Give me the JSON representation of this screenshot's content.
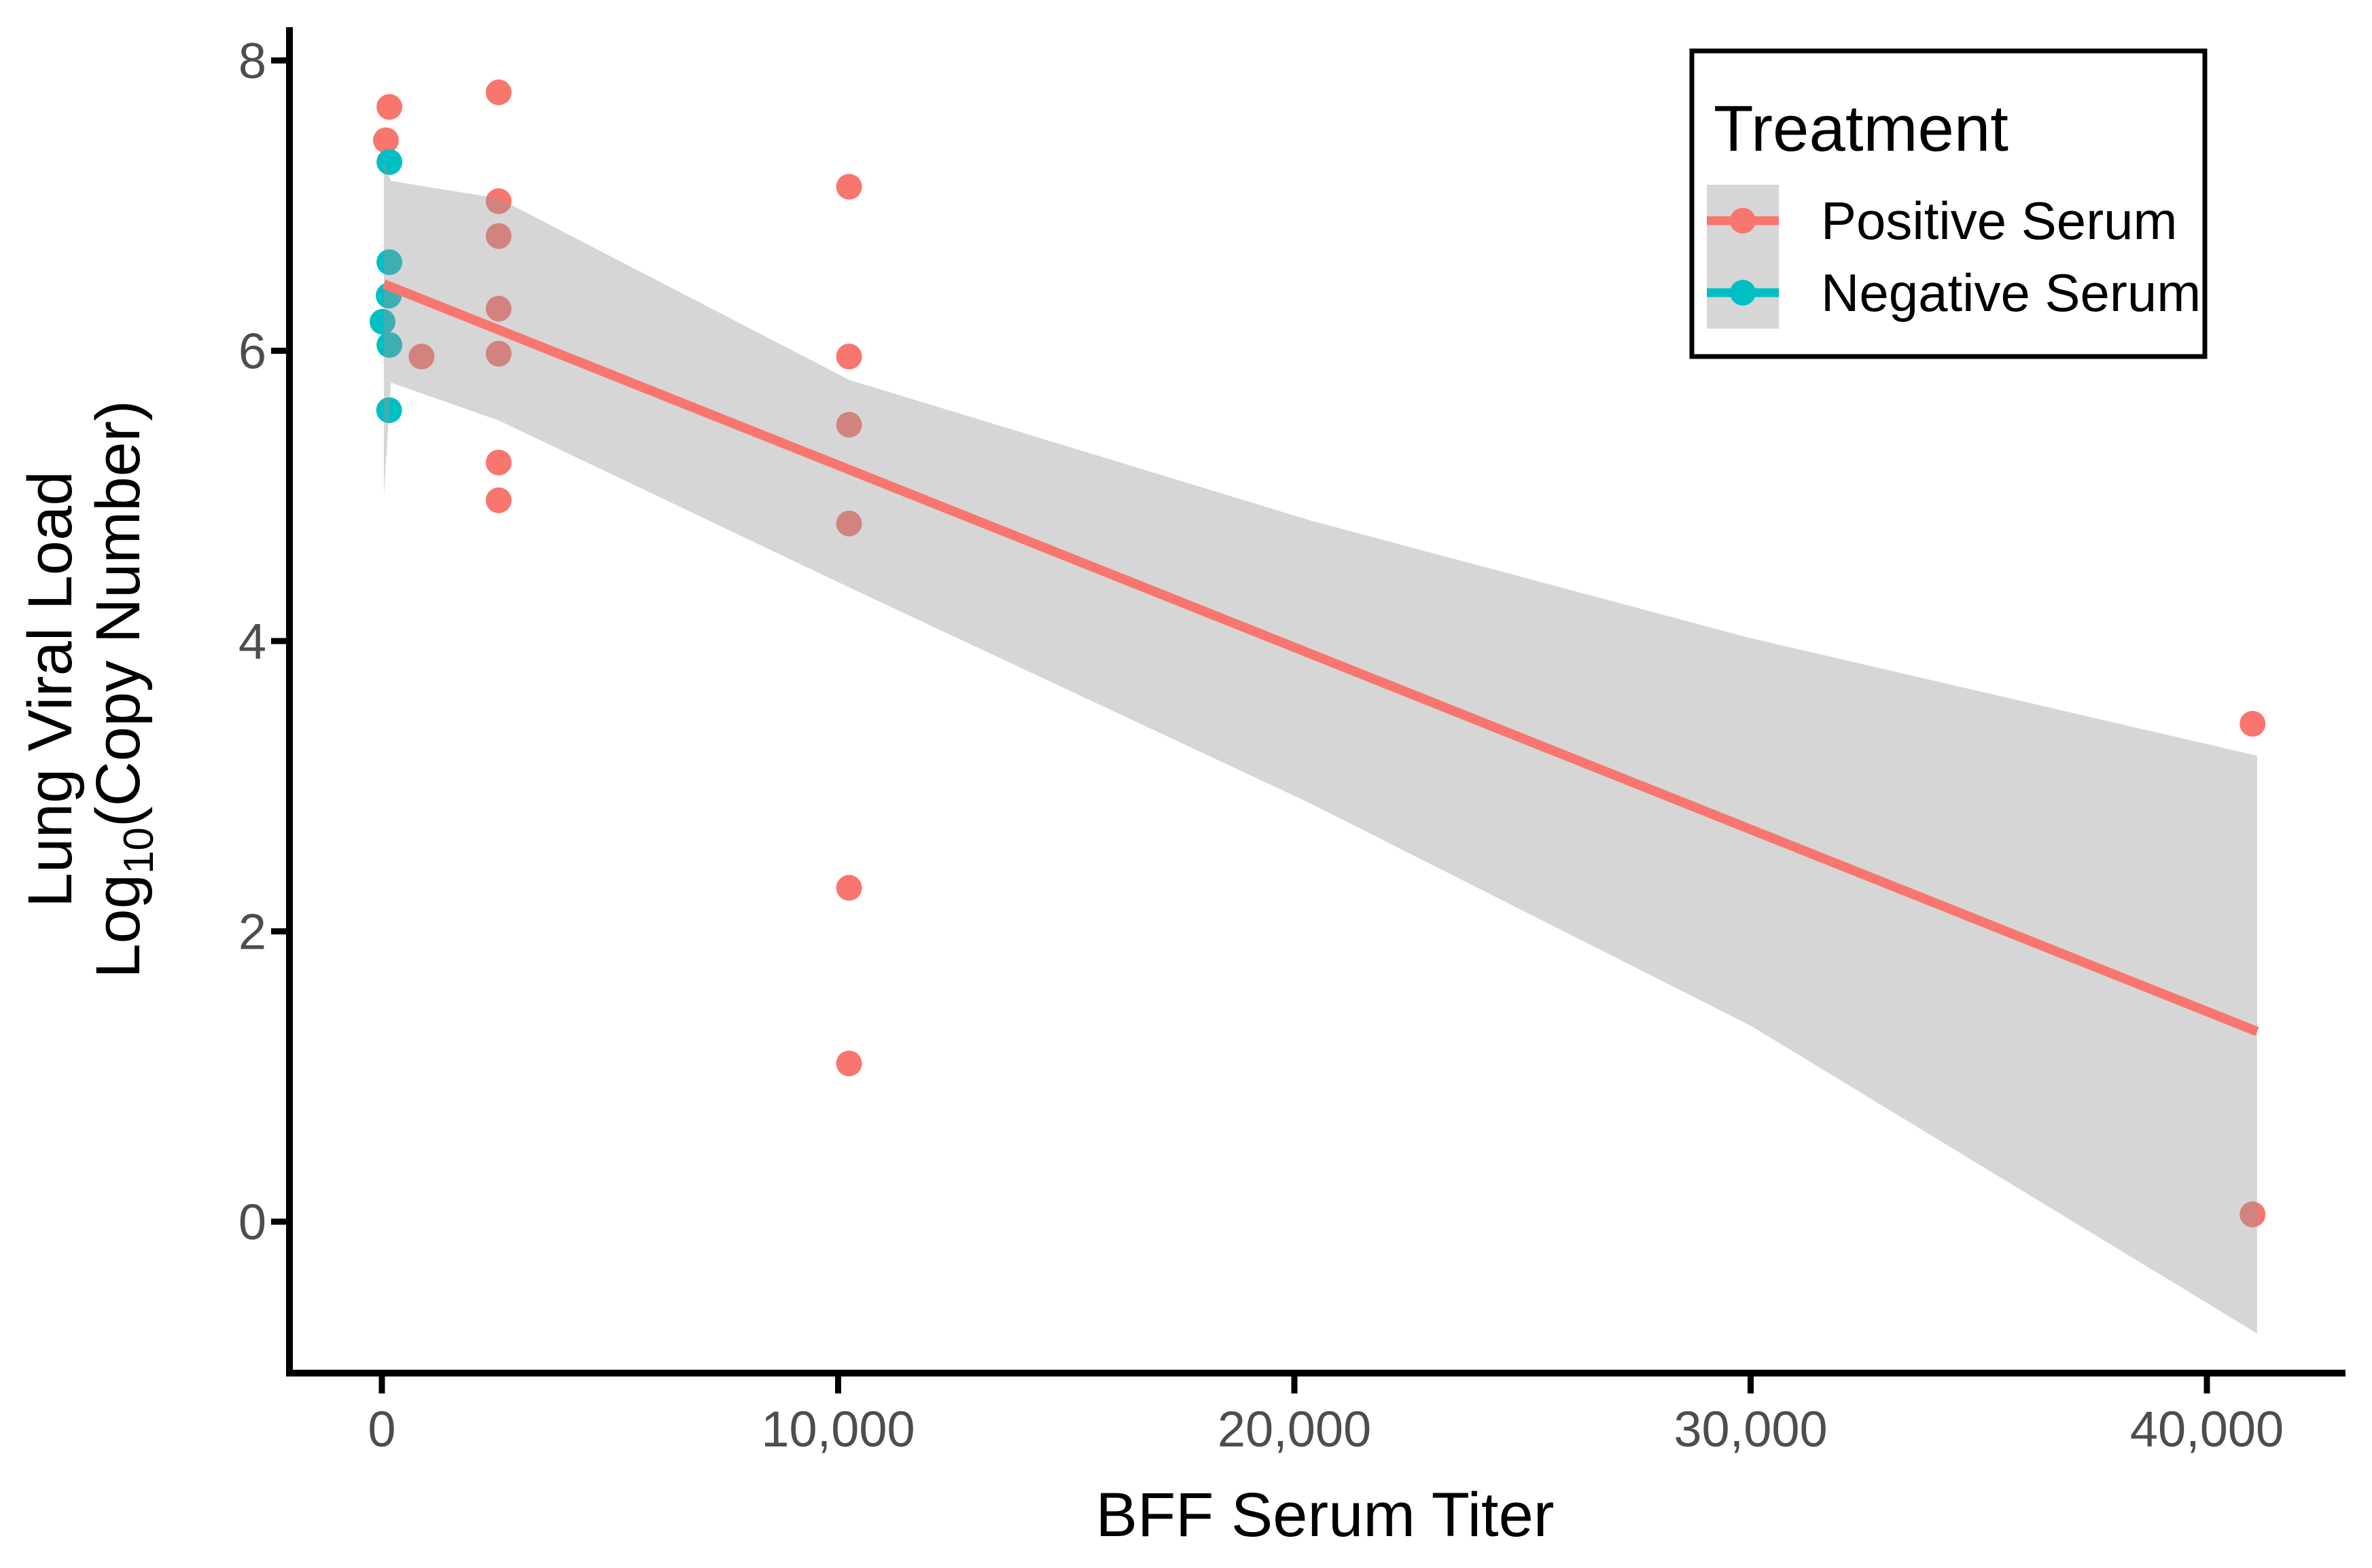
{
  "page": {
    "background": "#FFFFFF"
  },
  "chart_data": {
    "type": "scatter",
    "title": "",
    "xlabel": "BFF Serum Titer",
    "ylabel": {
      "line1": "Lung Viral Load",
      "line2_prefix": "Log",
      "line2_sub": "10",
      "line2_suffix": "(Copy Number)"
    },
    "x_ticks": [
      {
        "value": 0,
        "label": "0"
      },
      {
        "value": 10000,
        "label": "10,000"
      },
      {
        "value": 20000,
        "label": "20,000"
      },
      {
        "value": 30000,
        "label": "30,000"
      },
      {
        "value": 40000,
        "label": "40,000"
      }
    ],
    "y_ticks": [
      {
        "value": 0,
        "label": "0"
      },
      {
        "value": 2,
        "label": "2"
      },
      {
        "value": 4,
        "label": "4"
      },
      {
        "value": 6,
        "label": "6"
      },
      {
        "value": 8,
        "label": "8"
      }
    ],
    "xlim": [
      -2010,
      43040
    ],
    "ylim": [
      -1.08,
      8.29
    ],
    "grid": false,
    "legend": {
      "title": "Treatment",
      "position": "top-right-inside",
      "entries": [
        {
          "label": "Positive Serum",
          "color": "#F8766D"
        },
        {
          "label": "Negative Serum",
          "color": "#00BFC4"
        }
      ]
    },
    "series": [
      {
        "name": "Positive Serum",
        "color": "#F8766D",
        "points": [
          [
            165,
            7.68
          ],
          [
            90,
            7.45
          ],
          [
            870,
            5.96
          ],
          [
            2560,
            7.78
          ],
          [
            2560,
            7.03
          ],
          [
            2560,
            6.79
          ],
          [
            2560,
            6.29
          ],
          [
            2560,
            5.98
          ],
          [
            2560,
            5.23
          ],
          [
            2560,
            4.97
          ],
          [
            10240,
            7.13
          ],
          [
            10240,
            5.96
          ],
          [
            10240,
            5.49
          ],
          [
            10240,
            4.81
          ],
          [
            10240,
            2.3
          ],
          [
            10240,
            1.09
          ],
          [
            41000,
            3.43
          ],
          [
            41000,
            0.05
          ]
        ]
      },
      {
        "name": "Negative Serum",
        "color": "#00BFC4",
        "points": [
          [
            165,
            7.3
          ],
          [
            165,
            6.61
          ],
          [
            150,
            6.38
          ],
          [
            15,
            6.2
          ],
          [
            165,
            6.04
          ],
          [
            160,
            5.59
          ]
        ]
      }
    ],
    "regression_line": {
      "series": "Positive Serum",
      "color": "#F8766D",
      "points": [
        [
          45,
          6.46
        ],
        [
          41100,
          1.31
        ]
      ]
    },
    "confidence_band": {
      "fill": "#999999",
      "opacity": 0.4,
      "top": [
        [
          45,
          7.3
        ],
        [
          200,
          7.17
        ],
        [
          2560,
          7.05
        ],
        [
          10240,
          5.8
        ],
        [
          20360,
          4.83
        ],
        [
          30000,
          4.02
        ],
        [
          41100,
          3.21
        ]
      ],
      "bottom": [
        [
          45,
          5.0
        ],
        [
          200,
          5.78
        ],
        [
          2560,
          5.52
        ],
        [
          10240,
          4.37
        ],
        [
          20360,
          2.88
        ],
        [
          30000,
          1.35
        ],
        [
          41100,
          -0.77
        ]
      ]
    }
  },
  "colors": {
    "positive": "#F8766D",
    "negative": "#00BFC4",
    "band_fill": "#999999",
    "axis_line": "#000000",
    "tick_label": "#4D4D4D",
    "axis_title": "#000000",
    "legend_key_bg": "#D6D6D6",
    "legend_border": "#000000",
    "legend_text": "#000000"
  }
}
